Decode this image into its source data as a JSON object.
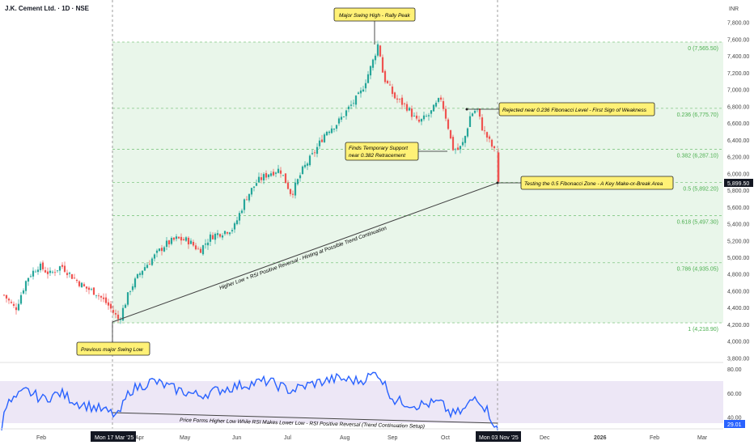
{
  "header": {
    "symbol_title": "J.K. Cement Ltd. · 1D · NSE",
    "currency": "INR"
  },
  "colors": {
    "up": "#26a69a",
    "down": "#ef5350",
    "fib_zone": "#e9f6ea",
    "fib_line": "#81c784",
    "fib_label": "#4caf50",
    "rsi_line": "#2962ff",
    "rsi_band": "#ede7f6",
    "callout_bg": "#fff176",
    "callout_border": "#222222",
    "axis_text": "#444444"
  },
  "price_axis": {
    "ticks": [
      "7,800.00",
      "7,600.00",
      "7,400.00",
      "7,200.00",
      "7,000.00",
      "6,800.00",
      "6,600.00",
      "6,400.00",
      "6,200.00",
      "6,000.00",
      "5,800.00",
      "5,600.00",
      "5,400.00",
      "5,200.00",
      "5,000.00",
      "4,800.00",
      "4,600.00",
      "4,400.00",
      "4,200.00",
      "4,000.00",
      "3,800.00"
    ],
    "last_price": "5,899.50"
  },
  "time_axis": {
    "ticks": [
      "Feb",
      "Apr",
      "May",
      "Jun",
      "Jul",
      "Aug",
      "Sep",
      "Oct",
      "Dec",
      "2026",
      "Feb",
      "Mar"
    ],
    "cursor_left": "Mon 17 Mar '25",
    "cursor_right": "Mon 03 Nov '25"
  },
  "fib_levels": [
    {
      "ratio": 0,
      "price": 7565.5,
      "label": "0 (7,565.50)"
    },
    {
      "ratio": 0.236,
      "price": 6775.7,
      "label": "0.236 (6,775.70)"
    },
    {
      "ratio": 0.382,
      "price": 6287.1,
      "label": "0.382 (6,287.10)"
    },
    {
      "ratio": 0.5,
      "price": 5892.2,
      "label": "0.5 (5,892.20)"
    },
    {
      "ratio": 0.618,
      "price": 5497.3,
      "label": "0.618 (5,497.30)"
    },
    {
      "ratio": 0.786,
      "price": 4935.05,
      "label": "0.786 (4,935.05)"
    },
    {
      "ratio": 1,
      "price": 4218.9,
      "label": "1 (4,218.90)"
    }
  ],
  "annotations": {
    "swing_high": "Major Swing High - Rally Peak",
    "swing_low": "Previous major Swing Low",
    "rejected": "Rejected near 0.236 Fibonacci Level - First Sign of Weakness",
    "support_line1": "Finds Temporary Support",
    "support_line2": "near 0.382 Retracement",
    "testing": "Testing the 0.5 Fibonacci Zone - A Key Make-or-Break Area",
    "trendline_label": "Higher Low + RSI Positive Reversal - Hinting at Possible Trend Continuation",
    "rsi_label": "Price Forms Higher Low While RSI Makes Lower Low - RSI Positive Reversal (Trend Continuation Setup)"
  },
  "rsi_axis": {
    "ticks": [
      "80.00",
      "60.00",
      "40.00"
    ],
    "last_value": "29.01"
  },
  "chart_data": {
    "type": "candlestick",
    "title": "J.K. Cement Ltd. · 1D · NSE",
    "ylabel": "INR",
    "ylim": [
      3700,
      7950
    ],
    "price_path": [
      [
        "2025-01-06",
        4550
      ],
      [
        "2025-01-13",
        4380
      ],
      [
        "2025-01-20",
        4750
      ],
      [
        "2025-01-27",
        4900
      ],
      [
        "2025-02-03",
        4800
      ],
      [
        "2025-02-10",
        4900
      ],
      [
        "2025-02-17",
        4760
      ],
      [
        "2025-02-24",
        4640
      ],
      [
        "2025-03-03",
        4580
      ],
      [
        "2025-03-10",
        4440
      ],
      [
        "2025-03-17",
        4250
      ],
      [
        "2025-03-24",
        4630
      ],
      [
        "2025-03-31",
        4850
      ],
      [
        "2025-04-07",
        5000
      ],
      [
        "2025-04-14",
        5150
      ],
      [
        "2025-04-21",
        5220
      ],
      [
        "2025-04-28",
        5200
      ],
      [
        "2025-05-05",
        5080
      ],
      [
        "2025-05-12",
        5250
      ],
      [
        "2025-05-19",
        5300
      ],
      [
        "2025-05-26",
        5350
      ],
      [
        "2025-06-02",
        5700
      ],
      [
        "2025-06-09",
        5900
      ],
      [
        "2025-06-16",
        6000
      ],
      [
        "2025-06-23",
        6050
      ],
      [
        "2025-06-30",
        5750
      ],
      [
        "2025-07-07",
        6050
      ],
      [
        "2025-07-14",
        6250
      ],
      [
        "2025-07-21",
        6500
      ],
      [
        "2025-07-28",
        6600
      ],
      [
        "2025-08-04",
        6780
      ],
      [
        "2025-08-11",
        6950
      ],
      [
        "2025-08-18",
        7300
      ],
      [
        "2025-08-22",
        7560
      ],
      [
        "2025-08-25",
        7150
      ],
      [
        "2025-09-01",
        6900
      ],
      [
        "2025-09-08",
        6800
      ],
      [
        "2025-09-15",
        6600
      ],
      [
        "2025-09-22",
        6700
      ],
      [
        "2025-09-29",
        6900
      ],
      [
        "2025-10-03",
        6600
      ],
      [
        "2025-10-06",
        6300
      ],
      [
        "2025-10-10",
        6280
      ],
      [
        "2025-10-13",
        6380
      ],
      [
        "2025-10-17",
        6700
      ],
      [
        "2025-10-21",
        6770
      ],
      [
        "2025-10-24",
        6550
      ],
      [
        "2025-10-28",
        6400
      ],
      [
        "2025-11-01",
        6250
      ],
      [
        "2025-11-03",
        5899.5
      ]
    ],
    "rsi_series": [
      [
        "2025-01-06",
        48
      ],
      [
        "2025-01-20",
        62
      ],
      [
        "2025-01-30",
        55
      ],
      [
        "2025-02-10",
        60
      ],
      [
        "2025-02-20",
        52
      ],
      [
        "2025-03-05",
        47
      ],
      [
        "2025-03-17",
        41
      ],
      [
        "2025-03-24",
        62
      ],
      [
        "2025-04-07",
        70
      ],
      [
        "2025-04-21",
        63
      ],
      [
        "2025-05-05",
        58
      ],
      [
        "2025-05-19",
        63
      ],
      [
        "2025-06-02",
        67
      ],
      [
        "2025-06-16",
        70
      ],
      [
        "2025-06-30",
        62
      ],
      [
        "2025-07-14",
        68
      ],
      [
        "2025-07-28",
        72
      ],
      [
        "2025-08-11",
        70
      ],
      [
        "2025-08-22",
        77
      ],
      [
        "2025-09-01",
        54
      ],
      [
        "2025-09-15",
        50
      ],
      [
        "2025-09-29",
        52
      ],
      [
        "2025-10-06",
        42
      ],
      [
        "2025-10-13",
        45
      ],
      [
        "2025-10-21",
        58
      ],
      [
        "2025-10-28",
        45
      ],
      [
        "2025-11-03",
        29.01
      ]
    ],
    "rsi_ylim": [
      28,
      85
    ],
    "fibonacci": [
      [
        0,
        7565.5
      ],
      [
        0.236,
        6775.7
      ],
      [
        0.382,
        6287.1
      ],
      [
        0.5,
        5892.2
      ],
      [
        0.618,
        5497.3
      ],
      [
        0.786,
        4935.05
      ],
      [
        1,
        4218.9
      ]
    ]
  }
}
